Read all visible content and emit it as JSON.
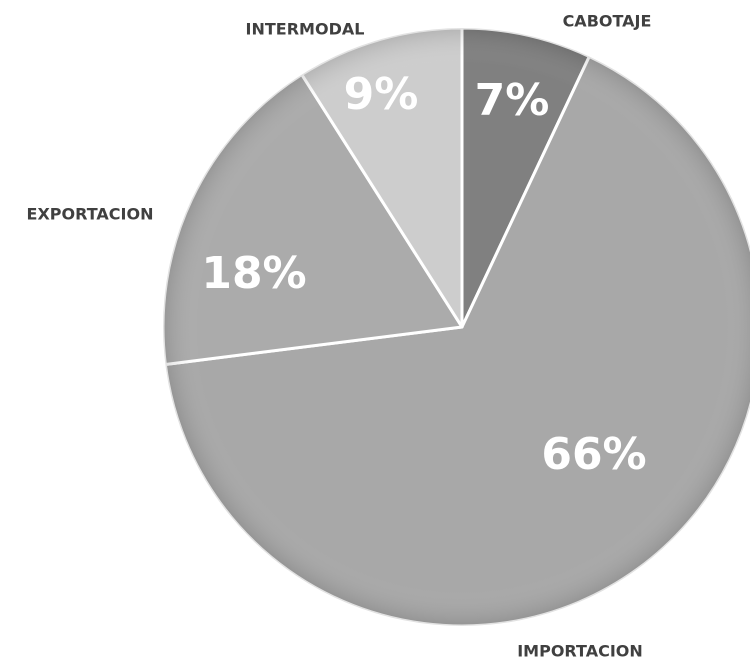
{
  "chart_data": {
    "type": "pie",
    "categories": [
      "CABOTAJE",
      "IMPORTACION",
      "EXPORTACION",
      "INTERMODAL"
    ],
    "values": [
      7,
      66,
      18,
      9
    ],
    "value_labels": [
      "7%",
      "66%",
      "18%",
      "9%"
    ],
    "colors": [
      "#808080",
      "#a8a8a8",
      "#ababab",
      "#cdcdcd"
    ]
  }
}
